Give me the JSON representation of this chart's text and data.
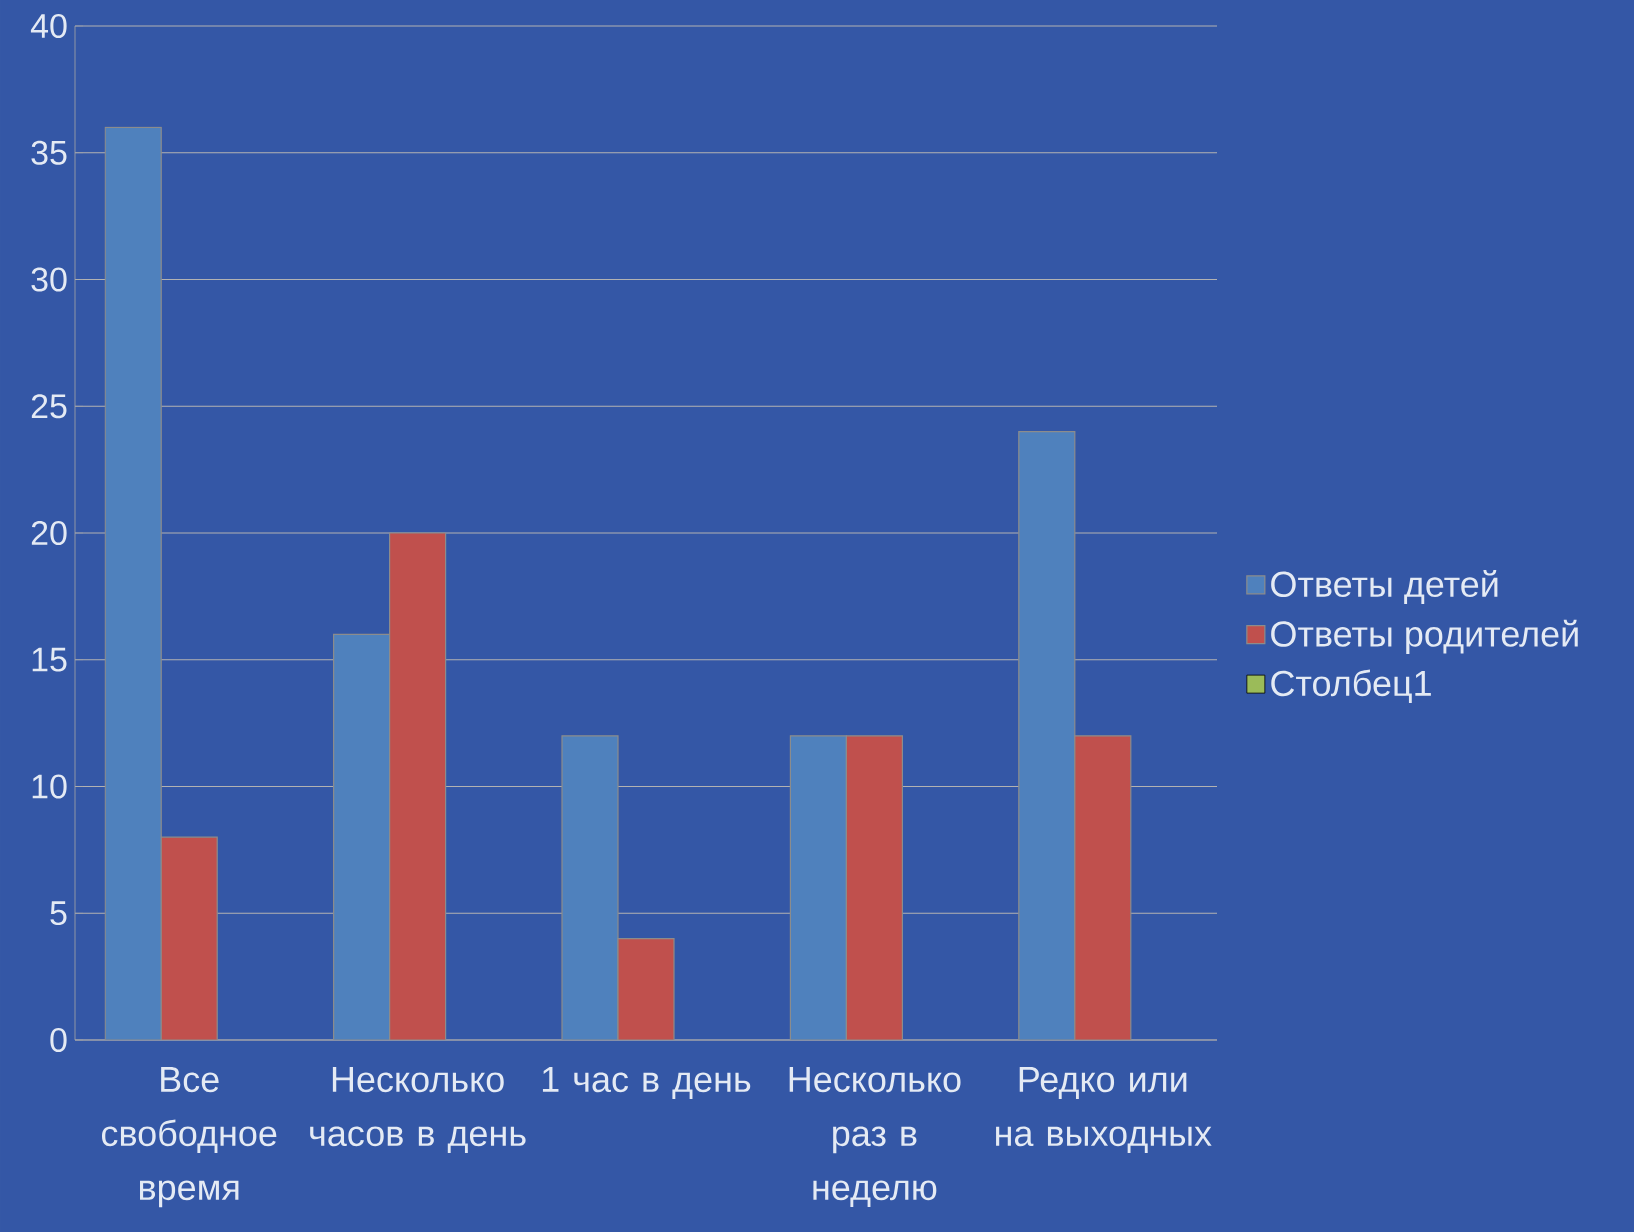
{
  "chart_data": {
    "type": "bar",
    "categories": [
      "Все свободное время",
      "Несколько часов в день",
      "1 час в день",
      "Несколько раз в неделю",
      "Редко или на выходных"
    ],
    "series": [
      {
        "name": "Ответы детей",
        "color": "#4f81bd",
        "values": [
          36,
          16,
          12,
          12,
          24
        ]
      },
      {
        "name": "Ответы родителей",
        "color": "#c0504d",
        "values": [
          8,
          20,
          4,
          12,
          12
        ]
      },
      {
        "name": "Столбец1",
        "color": "#9bbb59",
        "values": [
          null,
          null,
          null,
          null,
          null
        ]
      }
    ],
    "ylim": [
      0,
      40
    ],
    "yticks": [
      0,
      5,
      10,
      15,
      20,
      25,
      30,
      35,
      40
    ],
    "grid": "y",
    "legend": "right"
  }
}
